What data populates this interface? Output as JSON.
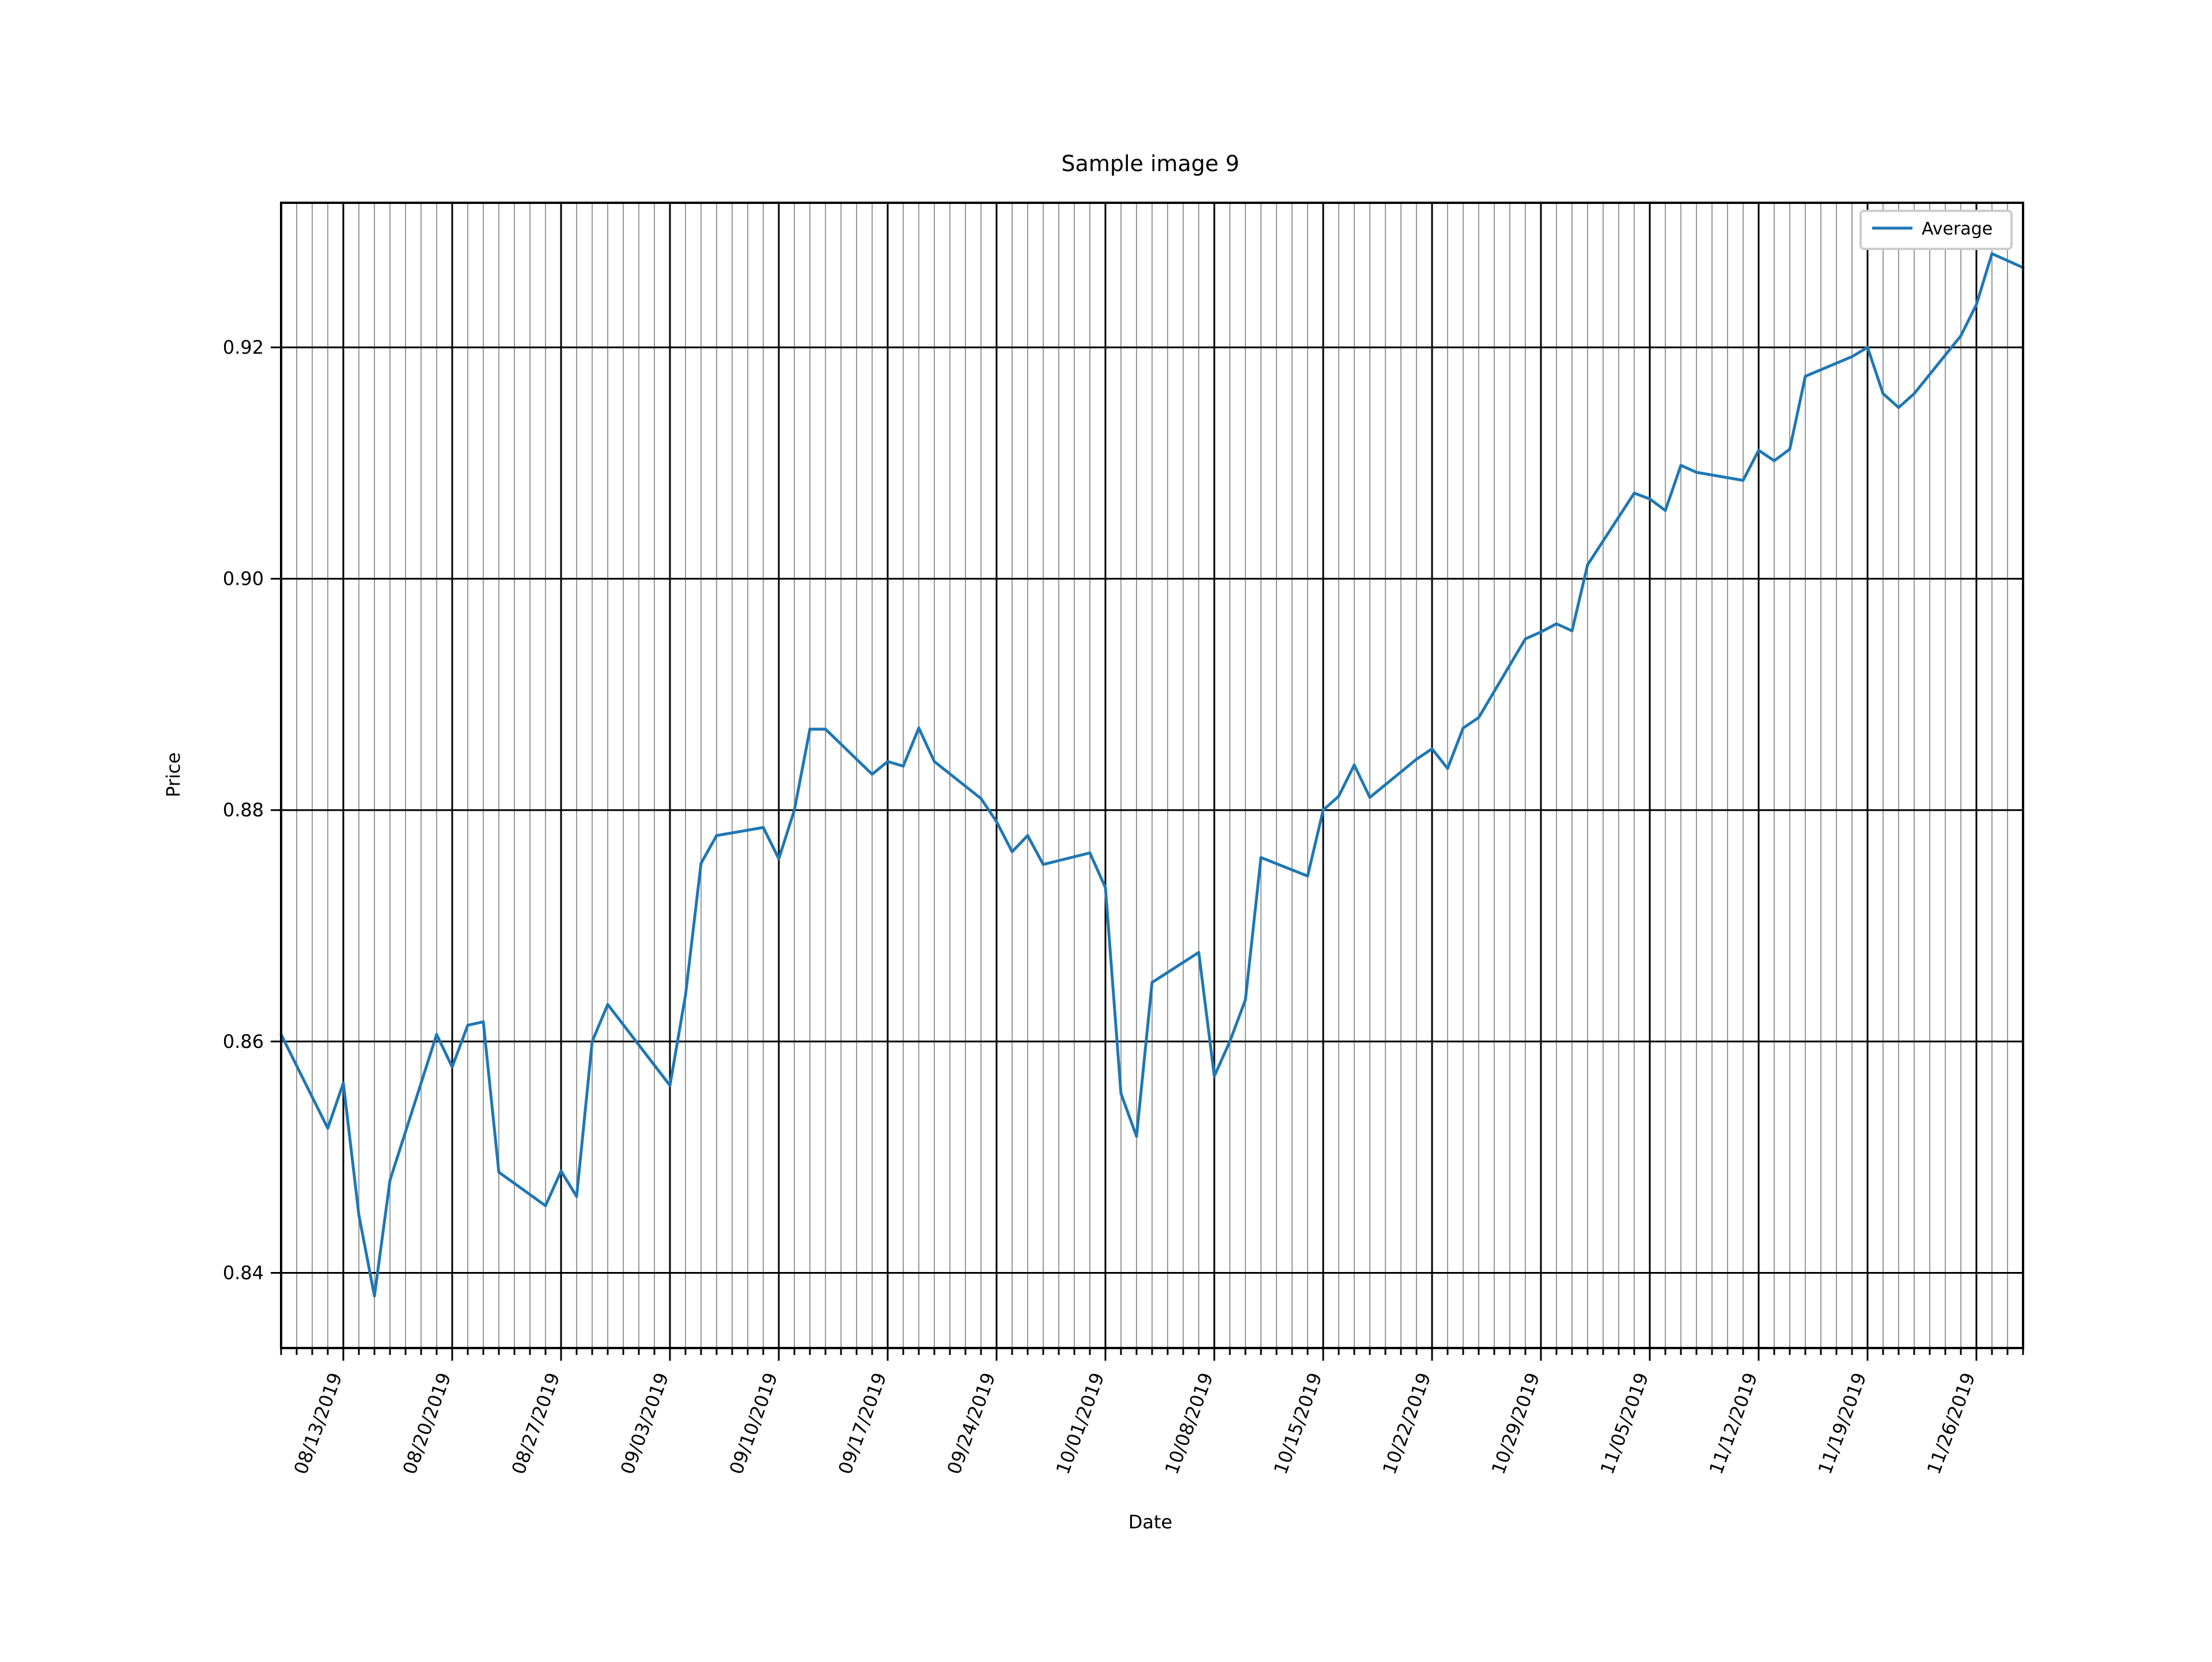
{
  "chart_data": {
    "type": "line",
    "title": "Sample image 9",
    "xlabel": "Date",
    "ylabel": "Price",
    "legend": {
      "location": "top-right",
      "entries": [
        "Average"
      ]
    },
    "grid": {
      "major": true,
      "minor": true
    },
    "colors": {
      "series": "#1f77b4",
      "major_grid": "#000000",
      "minor_grid": "#999999"
    },
    "xlim_days": [
      0,
      112
    ],
    "ylim": [
      0.8335,
      0.9325
    ],
    "date_origin": "08/07/2019",
    "yticks": [
      0.84,
      0.86,
      0.88,
      0.9,
      0.92
    ],
    "ytick_labels": [
      "0.84",
      "0.86",
      "0.88",
      "0.90",
      "0.92"
    ],
    "xticks": [
      {
        "day": 4,
        "label": "08/13/2019"
      },
      {
        "day": 11,
        "label": "08/20/2019"
      },
      {
        "day": 18,
        "label": "08/27/2019"
      },
      {
        "day": 25,
        "label": "09/03/2019"
      },
      {
        "day": 32,
        "label": "09/10/2019"
      },
      {
        "day": 39,
        "label": "09/17/2019"
      },
      {
        "day": 46,
        "label": "09/24/2019"
      },
      {
        "day": 53,
        "label": "10/01/2019"
      },
      {
        "day": 60,
        "label": "10/08/2019"
      },
      {
        "day": 67,
        "label": "10/15/2019"
      },
      {
        "day": 74,
        "label": "10/22/2019"
      },
      {
        "day": 81,
        "label": "10/29/2019"
      },
      {
        "day": 88,
        "label": "11/05/2019"
      },
      {
        "day": 95,
        "label": "11/12/2019"
      },
      {
        "day": 102,
        "label": "11/19/2019"
      },
      {
        "day": 109,
        "label": "11/26/2019"
      }
    ],
    "series": [
      {
        "name": "Average",
        "points": [
          [
            0,
            0.8606
          ],
          [
            3,
            0.8525
          ],
          [
            4,
            0.8564
          ],
          [
            5,
            0.845
          ],
          [
            6,
            0.838
          ],
          [
            7,
            0.848
          ],
          [
            10,
            0.8606
          ],
          [
            11,
            0.8578
          ],
          [
            12,
            0.8614
          ],
          [
            13,
            0.8617
          ],
          [
            14,
            0.8487
          ],
          [
            17,
            0.8458
          ],
          [
            18,
            0.8488
          ],
          [
            19,
            0.8466
          ],
          [
            20,
            0.86
          ],
          [
            21,
            0.8632
          ],
          [
            25,
            0.8562
          ],
          [
            26,
            0.864
          ],
          [
            27,
            0.8754
          ],
          [
            28,
            0.8778
          ],
          [
            31,
            0.8785
          ],
          [
            32,
            0.8758
          ],
          [
            33,
            0.88
          ],
          [
            34,
            0.887
          ],
          [
            35,
            0.887
          ],
          [
            38,
            0.8831
          ],
          [
            39,
            0.8842
          ],
          [
            40,
            0.8838
          ],
          [
            41,
            0.8871
          ],
          [
            42,
            0.8842
          ],
          [
            45,
            0.881
          ],
          [
            46,
            0.879
          ],
          [
            47,
            0.8764
          ],
          [
            48,
            0.8778
          ],
          [
            49,
            0.8753
          ],
          [
            52,
            0.8763
          ],
          [
            53,
            0.8733
          ],
          [
            54,
            0.8555
          ],
          [
            55,
            0.8518
          ],
          [
            56,
            0.8651
          ],
          [
            59,
            0.8677
          ],
          [
            60,
            0.857
          ],
          [
            61,
            0.86
          ],
          [
            62,
            0.8636
          ],
          [
            63,
            0.8759
          ],
          [
            66,
            0.8743
          ],
          [
            67,
            0.88
          ],
          [
            68,
            0.8812
          ],
          [
            69,
            0.8839
          ],
          [
            70,
            0.8811
          ],
          [
            73,
            0.8844
          ],
          [
            74,
            0.8853
          ],
          [
            75,
            0.8836
          ],
          [
            76,
            0.8871
          ],
          [
            77,
            0.888
          ],
          [
            80,
            0.8948
          ],
          [
            81,
            0.8954
          ],
          [
            82,
            0.8961
          ],
          [
            83,
            0.8955
          ],
          [
            84,
            0.9012
          ],
          [
            87,
            0.9074
          ],
          [
            88,
            0.9069
          ],
          [
            89,
            0.9059
          ],
          [
            90,
            0.9098
          ],
          [
            91,
            0.9092
          ],
          [
            94,
            0.9085
          ],
          [
            95,
            0.9111
          ],
          [
            96,
            0.9102
          ],
          [
            97,
            0.9112
          ],
          [
            98,
            0.9175
          ],
          [
            101,
            0.9192
          ],
          [
            102,
            0.92
          ],
          [
            103,
            0.916
          ],
          [
            104,
            0.9148
          ],
          [
            105,
            0.916
          ],
          [
            108,
            0.921
          ],
          [
            109,
            0.9237
          ],
          [
            110,
            0.9281
          ],
          [
            112,
            0.9269
          ]
        ]
      }
    ]
  }
}
